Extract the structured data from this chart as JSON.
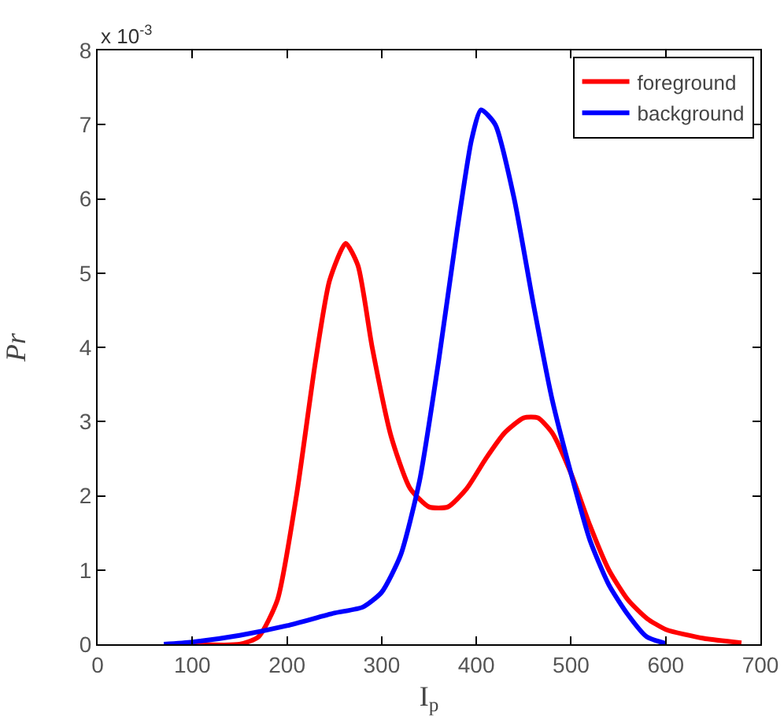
{
  "chart_data": {
    "type": "line",
    "xlabel": "I$_{p}$",
    "ylabel": "Pr",
    "annotations": [
      "x 10$^{-3}$"
    ],
    "xlim": [
      0,
      700
    ],
    "xticks": [
      0,
      100,
      200,
      300,
      400,
      500,
      600,
      700
    ],
    "ylim": [
      0,
      8
    ],
    "yticks": [
      0,
      1,
      2,
      3,
      4,
      5,
      6,
      7,
      8
    ],
    "grid": false,
    "legend": "top right",
    "marker": "none",
    "line_style": "solid",
    "series": [
      {
        "name": "foreground",
        "color": "#ff0000",
        "x": [
          100,
          150,
          170,
          190,
          210,
          230,
          245,
          262,
          275,
          290,
          310,
          330,
          350,
          370,
          390,
          410,
          430,
          450,
          465,
          480,
          500,
          520,
          540,
          560,
          580,
          600,
          640,
          680
        ],
        "values": [
          0,
          0,
          0.1,
          0.6,
          2.0,
          3.8,
          4.9,
          5.4,
          5.1,
          4.0,
          2.8,
          2.1,
          1.85,
          1.85,
          2.1,
          2.5,
          2.85,
          3.05,
          3.05,
          2.85,
          2.3,
          1.6,
          1.0,
          0.6,
          0.35,
          0.2,
          0.08,
          0.02
        ]
      },
      {
        "name": "background",
        "color": "#0000ff",
        "x": [
          70,
          100,
          150,
          200,
          250,
          280,
          300,
          320,
          340,
          360,
          380,
          395,
          405,
          420,
          440,
          460,
          480,
          500,
          520,
          540,
          560,
          580,
          600
        ],
        "values": [
          0,
          0.03,
          0.12,
          0.25,
          0.42,
          0.5,
          0.7,
          1.2,
          2.2,
          3.8,
          5.6,
          6.8,
          7.2,
          7.0,
          6.0,
          4.6,
          3.3,
          2.3,
          1.4,
          0.8,
          0.4,
          0.1,
          0.01
        ]
      }
    ]
  }
}
